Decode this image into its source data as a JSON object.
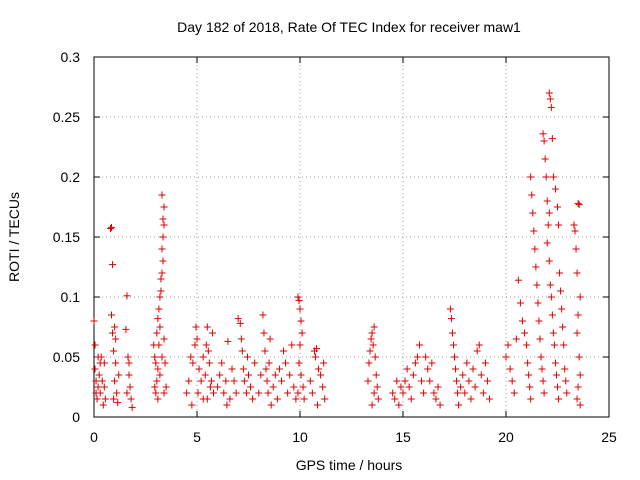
{
  "chart_data": {
    "type": "scatter",
    "title": "Day 182 of 2018, Rate Of TEC Index for receiver maw1",
    "xlabel": "GPS time / hours",
    "ylabel": "ROTI / TECUs",
    "xlim": [
      0,
      25
    ],
    "ylim": [
      0,
      0.3
    ],
    "xticks": [
      "0",
      "5",
      "10",
      "15",
      "20",
      "25"
    ],
    "xtick_values": [
      0,
      5,
      10,
      15,
      20,
      25
    ],
    "yticks": [
      "0",
      "0.05",
      "0.1",
      "0.15",
      "0.2",
      "0.25",
      "0.3"
    ],
    "ytick_values": [
      0,
      0.05,
      0.1,
      0.15,
      0.2,
      0.25,
      0.3
    ],
    "grid": true,
    "marker": "+",
    "series": [
      {
        "name": "ROTI",
        "color": "#e00000",
        "points": [
          [
            0.0,
            0.08
          ],
          [
            0.05,
            0.06
          ],
          [
            0.05,
            0.04
          ],
          [
            0.1,
            0.03
          ],
          [
            0.1,
            0.02
          ],
          [
            0.15,
            0.015
          ],
          [
            0.2,
            0.025
          ],
          [
            0.2,
            0.05
          ],
          [
            0.25,
            0.035
          ],
          [
            0.3,
            0.02
          ],
          [
            0.3,
            0.045
          ],
          [
            0.35,
            0.05
          ],
          [
            0.4,
            0.03
          ],
          [
            0.45,
            0.01
          ],
          [
            0.5,
            0.025
          ],
          [
            0.5,
            0.045
          ],
          [
            0.55,
            0.015
          ],
          [
            0.8,
            0.157
          ],
          [
            0.85,
            0.158
          ],
          [
            0.9,
            0.127
          ],
          [
            0.85,
            0.085
          ],
          [
            0.9,
            0.07
          ],
          [
            0.95,
            0.055
          ],
          [
            1.0,
            0.075
          ],
          [
            1.05,
            0.045
          ],
          [
            1.0,
            0.03
          ],
          [
            1.1,
            0.02
          ],
          [
            1.15,
            0.012
          ],
          [
            1.2,
            0.035
          ],
          [
            0.95,
            0.015
          ],
          [
            1.05,
            0.065
          ],
          [
            1.6,
            0.101
          ],
          [
            1.55,
            0.073
          ],
          [
            1.65,
            0.05
          ],
          [
            1.7,
            0.035
          ],
          [
            1.75,
            0.025
          ],
          [
            1.8,
            0.015
          ],
          [
            1.85,
            0.008
          ],
          [
            1.7,
            0.045
          ],
          [
            1.6,
            0.02
          ],
          [
            2.9,
            0.06
          ],
          [
            2.95,
            0.05
          ],
          [
            3.0,
            0.045
          ],
          [
            3.05,
            0.07
          ],
          [
            3.1,
            0.082
          ],
          [
            3.15,
            0.09
          ],
          [
            3.2,
            0.1
          ],
          [
            3.25,
            0.115
          ],
          [
            3.3,
            0.12
          ],
          [
            3.3,
            0.14
          ],
          [
            3.35,
            0.15
          ],
          [
            3.35,
            0.165
          ],
          [
            3.3,
            0.185
          ],
          [
            3.4,
            0.175
          ],
          [
            3.4,
            0.16
          ],
          [
            3.35,
            0.13
          ],
          [
            3.25,
            0.105
          ],
          [
            3.2,
            0.075
          ],
          [
            3.15,
            0.06
          ],
          [
            3.1,
            0.04
          ],
          [
            3.05,
            0.03
          ],
          [
            3.0,
            0.02
          ],
          [
            2.95,
            0.025
          ],
          [
            3.1,
            0.015
          ],
          [
            3.2,
            0.035
          ],
          [
            3.3,
            0.05
          ],
          [
            3.4,
            0.065
          ],
          [
            3.45,
            0.045
          ],
          [
            3.5,
            0.025
          ],
          [
            3.4,
            0.02
          ],
          [
            4.5,
            0.02
          ],
          [
            4.6,
            0.03
          ],
          [
            4.7,
            0.05
          ],
          [
            4.8,
            0.045
          ],
          [
            4.9,
            0.06
          ],
          [
            4.95,
            0.075
          ],
          [
            5.0,
            0.065
          ],
          [
            5.1,
            0.04
          ],
          [
            5.2,
            0.03
          ],
          [
            5.3,
            0.015
          ],
          [
            4.75,
            0.01
          ],
          [
            5.05,
            0.02
          ],
          [
            5.3,
            0.05
          ],
          [
            5.4,
            0.035
          ],
          [
            5.45,
            0.06
          ],
          [
            5.5,
            0.075
          ],
          [
            5.55,
            0.055
          ],
          [
            5.6,
            0.045
          ],
          [
            5.7,
            0.03
          ],
          [
            5.75,
            0.07
          ],
          [
            5.8,
            0.02
          ],
          [
            5.5,
            0.015
          ],
          [
            5.65,
            0.025
          ],
          [
            6.0,
            0.025
          ],
          [
            6.1,
            0.035
          ],
          [
            6.2,
            0.045
          ],
          [
            6.3,
            0.02
          ],
          [
            6.4,
            0.03
          ],
          [
            6.5,
            0.063
          ],
          [
            6.45,
            0.01
          ],
          [
            6.6,
            0.015
          ],
          [
            6.7,
            0.04
          ],
          [
            6.8,
            0.03
          ],
          [
            6.9,
            0.02
          ],
          [
            7.0,
            0.082
          ],
          [
            7.1,
            0.078
          ],
          [
            7.15,
            0.065
          ],
          [
            7.2,
            0.055
          ],
          [
            7.25,
            0.04
          ],
          [
            7.3,
            0.03
          ],
          [
            7.4,
            0.02
          ],
          [
            7.45,
            0.05
          ],
          [
            7.5,
            0.035
          ],
          [
            7.6,
            0.025
          ],
          [
            7.7,
            0.015
          ],
          [
            7.8,
            0.045
          ],
          [
            8.0,
            0.02
          ],
          [
            8.1,
            0.035
          ],
          [
            8.2,
            0.085
          ],
          [
            8.25,
            0.07
          ],
          [
            8.3,
            0.055
          ],
          [
            8.35,
            0.04
          ],
          [
            8.4,
            0.03
          ],
          [
            8.45,
            0.02
          ],
          [
            8.5,
            0.045
          ],
          [
            8.55,
            0.065
          ],
          [
            8.6,
            0.01
          ],
          [
            8.7,
            0.025
          ],
          [
            8.8,
            0.035
          ],
          [
            8.9,
            0.015
          ],
          [
            9.0,
            0.04
          ],
          [
            9.1,
            0.03
          ],
          [
            9.2,
            0.055
          ],
          [
            9.3,
            0.045
          ],
          [
            9.4,
            0.02
          ],
          [
            9.5,
            0.035
          ],
          [
            9.6,
            0.06
          ],
          [
            9.7,
            0.025
          ],
          [
            9.8,
            0.015
          ],
          [
            9.9,
            0.1
          ],
          [
            9.95,
            0.097
          ],
          [
            10.0,
            0.09
          ],
          [
            10.05,
            0.08
          ],
          [
            10.1,
            0.07
          ],
          [
            10.0,
            0.06
          ],
          [
            9.95,
            0.045
          ],
          [
            10.05,
            0.035
          ],
          [
            10.15,
            0.025
          ],
          [
            10.2,
            0.015
          ],
          [
            9.9,
            0.02
          ],
          [
            10.5,
            0.03
          ],
          [
            10.6,
            0.02
          ],
          [
            10.7,
            0.055
          ],
          [
            10.75,
            0.05
          ],
          [
            10.8,
            0.057
          ],
          [
            10.9,
            0.04
          ],
          [
            11.0,
            0.035
          ],
          [
            11.1,
            0.025
          ],
          [
            11.2,
            0.015
          ],
          [
            10.85,
            0.01
          ],
          [
            11.15,
            0.045
          ],
          [
            13.3,
            0.03
          ],
          [
            13.35,
            0.045
          ],
          [
            13.4,
            0.055
          ],
          [
            13.45,
            0.065
          ],
          [
            13.5,
            0.07
          ],
          [
            13.55,
            0.06
          ],
          [
            13.6,
            0.075
          ],
          [
            13.65,
            0.05
          ],
          [
            13.7,
            0.035
          ],
          [
            13.75,
            0.025
          ],
          [
            13.8,
            0.015
          ],
          [
            13.5,
            0.01
          ],
          [
            13.6,
            0.02
          ],
          [
            14.5,
            0.02
          ],
          [
            14.6,
            0.015
          ],
          [
            14.7,
            0.03
          ],
          [
            14.8,
            0.01
          ],
          [
            14.9,
            0.025
          ],
          [
            15.0,
            0.02
          ],
          [
            15.1,
            0.03
          ],
          [
            15.2,
            0.04
          ],
          [
            15.3,
            0.025
          ],
          [
            15.4,
            0.015
          ],
          [
            15.5,
            0.035
          ],
          [
            15.6,
            0.045
          ],
          [
            15.7,
            0.05
          ],
          [
            15.8,
            0.06
          ],
          [
            15.9,
            0.03
          ],
          [
            16.0,
            0.02
          ],
          [
            16.1,
            0.05
          ],
          [
            16.2,
            0.04
          ],
          [
            16.3,
            0.03
          ],
          [
            16.4,
            0.045
          ],
          [
            16.5,
            0.02
          ],
          [
            16.6,
            0.015
          ],
          [
            16.7,
            0.025
          ],
          [
            16.8,
            0.01
          ],
          [
            17.3,
            0.09
          ],
          [
            17.35,
            0.082
          ],
          [
            17.4,
            0.07
          ],
          [
            17.45,
            0.06
          ],
          [
            17.5,
            0.05
          ],
          [
            17.55,
            0.04
          ],
          [
            17.6,
            0.03
          ],
          [
            17.65,
            0.02
          ],
          [
            17.7,
            0.01
          ],
          [
            17.8,
            0.025
          ],
          [
            17.9,
            0.035
          ],
          [
            18.0,
            0.02
          ],
          [
            18.1,
            0.045
          ],
          [
            18.2,
            0.03
          ],
          [
            18.3,
            0.015
          ],
          [
            18.4,
            0.04
          ],
          [
            18.5,
            0.025
          ],
          [
            18.6,
            0.055
          ],
          [
            18.7,
            0.06
          ],
          [
            18.8,
            0.035
          ],
          [
            18.9,
            0.02
          ],
          [
            19.0,
            0.045
          ],
          [
            19.1,
            0.03
          ],
          [
            19.2,
            0.015
          ],
          [
            20.0,
            0.05
          ],
          [
            20.1,
            0.06
          ],
          [
            20.2,
            0.04
          ],
          [
            20.3,
            0.03
          ],
          [
            20.4,
            0.02
          ],
          [
            20.5,
            0.065
          ],
          [
            20.6,
            0.114
          ],
          [
            20.7,
            0.095
          ],
          [
            20.8,
            0.08
          ],
          [
            20.9,
            0.07
          ],
          [
            21.0,
            0.06
          ],
          [
            21.05,
            0.045
          ],
          [
            21.1,
            0.035
          ],
          [
            21.15,
            0.025
          ],
          [
            21.2,
            0.015
          ],
          [
            21.2,
            0.2
          ],
          [
            21.25,
            0.185
          ],
          [
            21.3,
            0.17
          ],
          [
            21.35,
            0.155
          ],
          [
            21.4,
            0.14
          ],
          [
            21.45,
            0.125
          ],
          [
            21.5,
            0.11
          ],
          [
            21.55,
            0.095
          ],
          [
            21.6,
            0.08
          ],
          [
            21.65,
            0.065
          ],
          [
            21.7,
            0.05
          ],
          [
            21.75,
            0.04
          ],
          [
            21.8,
            0.03
          ],
          [
            21.85,
            0.02
          ],
          [
            21.8,
            0.236
          ],
          [
            21.85,
            0.23
          ],
          [
            21.9,
            0.215
          ],
          [
            21.95,
            0.2
          ],
          [
            22.0,
            0.18
          ],
          [
            22.05,
            0.16
          ],
          [
            22.0,
            0.145
          ],
          [
            22.1,
            0.13
          ],
          [
            22.15,
            0.11
          ],
          [
            22.2,
            0.1
          ],
          [
            22.25,
            0.085
          ],
          [
            22.3,
            0.07
          ],
          [
            22.35,
            0.06
          ],
          [
            22.4,
            0.045
          ],
          [
            22.45,
            0.035
          ],
          [
            22.5,
            0.025
          ],
          [
            22.55,
            0.015
          ],
          [
            22.1,
            0.27
          ],
          [
            22.15,
            0.265
          ],
          [
            22.2,
            0.258
          ],
          [
            22.25,
            0.232
          ],
          [
            22.1,
            0.17
          ],
          [
            22.3,
            0.2
          ],
          [
            22.4,
            0.19
          ],
          [
            22.5,
            0.175
          ],
          [
            22.55,
            0.16
          ],
          [
            22.6,
            0.12
          ],
          [
            22.65,
            0.105
          ],
          [
            22.7,
            0.09
          ],
          [
            22.75,
            0.075
          ],
          [
            22.8,
            0.06
          ],
          [
            22.85,
            0.04
          ],
          [
            22.9,
            0.03
          ],
          [
            22.95,
            0.02
          ],
          [
            23.3,
            0.16
          ],
          [
            23.35,
            0.155
          ],
          [
            23.4,
            0.14
          ],
          [
            23.45,
            0.12
          ],
          [
            23.5,
            0.178
          ],
          [
            23.55,
            0.177
          ],
          [
            23.6,
            0.1
          ],
          [
            23.5,
            0.085
          ],
          [
            23.45,
            0.07
          ],
          [
            23.55,
            0.05
          ],
          [
            23.6,
            0.035
          ],
          [
            23.5,
            0.025
          ],
          [
            23.45,
            0.015
          ],
          [
            23.6,
            0.01
          ]
        ]
      }
    ]
  }
}
